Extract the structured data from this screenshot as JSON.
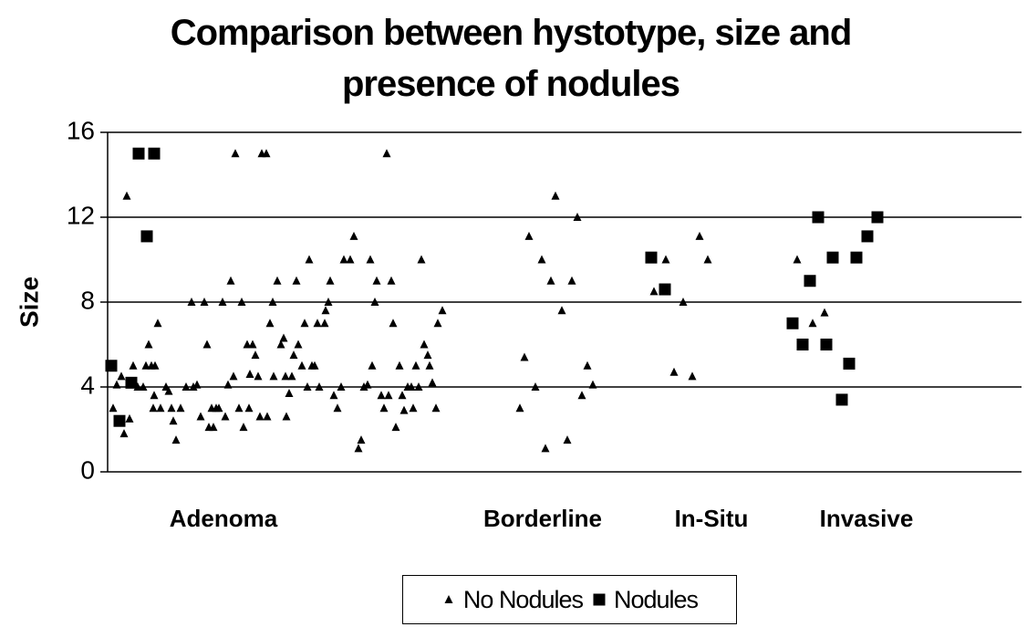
{
  "chart_data": {
    "type": "scatter",
    "title": "Comparison between hystotype, size and presence of nodules",
    "y_label": "Size",
    "xlim": [
      0,
      1002
    ],
    "ylim": [
      0,
      16
    ],
    "yticks": [
      0,
      4,
      8,
      12,
      16
    ],
    "grid": true,
    "group_labels": [
      {
        "label": "Adenoma",
        "x": 127
      },
      {
        "label": "Borderline",
        "x": 477
      },
      {
        "label": "In-Situ",
        "x": 662
      },
      {
        "label": "Invasive",
        "x": 832
      }
    ],
    "series": [
      {
        "name": "No Nodules",
        "marker": "triangle",
        "color": "#000000",
        "x": [
          6,
          10,
          15,
          18,
          21,
          24,
          28,
          33,
          39,
          42,
          45,
          48,
          52,
          50,
          55,
          51,
          58,
          64,
          67,
          70,
          72,
          75,
          80,
          86,
          92,
          94,
          98,
          102,
          106,
          109,
          111,
          114,
          116,
          119,
          122,
          126,
          129,
          132,
          135,
          138,
          140,
          144,
          147,
          149,
          153,
          155,
          156,
          159,
          162,
          165,
          167,
          169,
          174,
          175,
          178,
          181,
          182,
          186,
          190,
          193,
          195,
          196,
          199,
          202,
          204,
          207,
          209,
          213,
          216,
          219,
          221,
          224,
          227,
          230,
          232,
          238,
          239,
          242,
          244,
          248,
          252,
          256,
          259,
          266,
          270,
          275,
          278,
          281,
          285,
          288,
          290,
          293,
          295,
          300,
          303,
          306,
          308,
          311,
          313,
          316,
          320,
          323,
          325,
          329,
          333,
          335,
          338,
          341,
          344,
          347,
          351,
          353,
          356,
          360,
          362,
          367,
          452,
          457,
          462,
          469,
          476,
          480,
          486,
          491,
          498,
          504,
          509,
          515,
          520,
          526,
          532,
          599,
          612,
          621,
          631,
          641,
          649,
          658,
          756,
          773,
          786
        ],
        "y": [
          3,
          4.1,
          4.5,
          1.8,
          13,
          2.5,
          5,
          4,
          4,
          5,
          6,
          5,
          5,
          3,
          7,
          3.6,
          3,
          4,
          3.8,
          3,
          2.4,
          1.5,
          3,
          4,
          8,
          4,
          4.1,
          2.6,
          8,
          6,
          2.1,
          3,
          2.1,
          3,
          3,
          8,
          2.6,
          4.1,
          9,
          4.5,
          15,
          3,
          8,
          2.1,
          6,
          3,
          4.6,
          6,
          5.5,
          4.5,
          2.6,
          15,
          15,
          2.6,
          7,
          8,
          4.5,
          9,
          6,
          6.3,
          4.5,
          2.6,
          3.7,
          4.5,
          5.5,
          9,
          6,
          5,
          7,
          4,
          10,
          5,
          5,
          7,
          4,
          7,
          7.6,
          8,
          9,
          3.6,
          3,
          4,
          10,
          10,
          11.1,
          1.1,
          1.5,
          4,
          4.1,
          10,
          5,
          8,
          9,
          3.6,
          3,
          15,
          3.6,
          9,
          7,
          2.1,
          5,
          3.6,
          2.9,
          4,
          4,
          3,
          5,
          4,
          10,
          6,
          5.5,
          5,
          4.2,
          3,
          7,
          7.6,
          3,
          5.4,
          11.1,
          4,
          10,
          1.1,
          9,
          13,
          7.6,
          1.5,
          9,
          12,
          3.6,
          5,
          4.1,
          8.5,
          10,
          4.7,
          8,
          4.5,
          11.1,
          10,
          10,
          7,
          7.5
        ]
      },
      {
        "name": "Nodules",
        "marker": "square",
        "color": "#000000",
        "x": [
          4,
          13,
          26,
          34,
          51,
          43,
          596,
          611,
          751,
          762,
          770,
          779,
          788,
          795,
          813,
          805,
          821,
          833,
          844
        ],
        "y": [
          5,
          2.4,
          4.2,
          15,
          15,
          11.1,
          10.1,
          8.6,
          7,
          6,
          9,
          12,
          6,
          10.1,
          5.1,
          3.4,
          10.1,
          11.1,
          12
        ]
      }
    ]
  }
}
